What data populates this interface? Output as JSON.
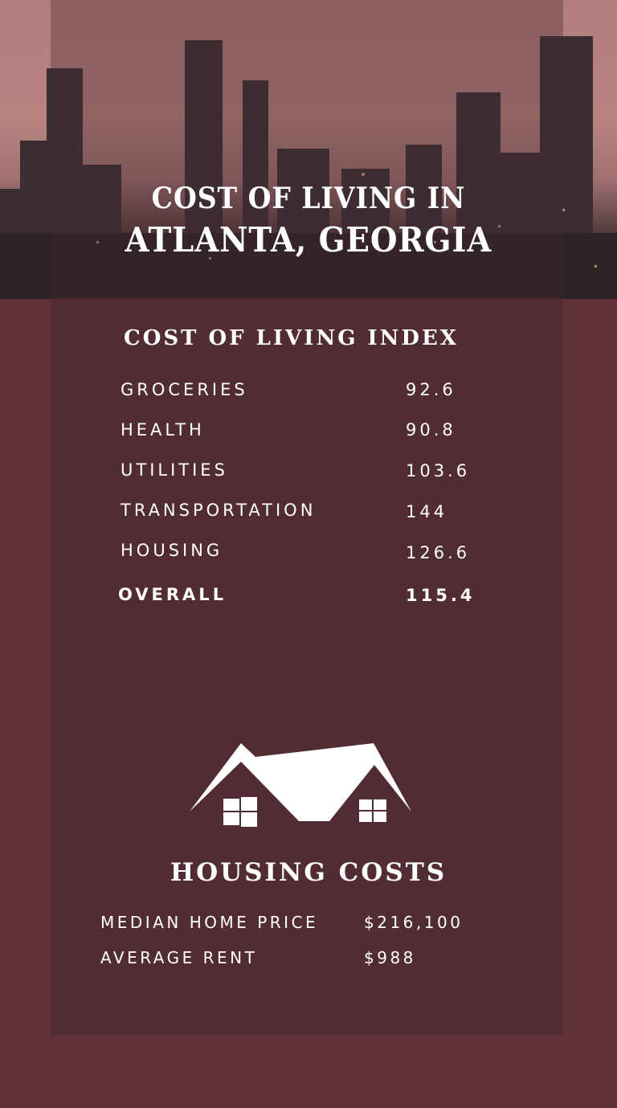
{
  "header": {
    "line1": "COST OF LIVING IN",
    "line2": "ATLANTA, GEORGIA"
  },
  "cost_index": {
    "title": "COST OF LIVING INDEX",
    "rows": [
      {
        "label": "GROCERIES",
        "value": "92.6"
      },
      {
        "label": "HEALTH",
        "value": "90.8"
      },
      {
        "label": "UTILITIES",
        "value": "103.6"
      },
      {
        "label": "TRANSPORTATION",
        "value": "144"
      },
      {
        "label": "HOUSING",
        "value": "126.6"
      }
    ],
    "overall": {
      "label": "OVERALL",
      "value": "115.4"
    }
  },
  "housing": {
    "icon": "house-icon",
    "title": "HOUSING COSTS",
    "rows": [
      {
        "label": "MEDIAN HOME PRICE",
        "value": "$216,100"
      },
      {
        "label": "AVERAGE RENT",
        "value": "$988"
      }
    ]
  },
  "colors": {
    "background": "#62323b",
    "panel": "#512c33",
    "text": "#ffffff"
  }
}
